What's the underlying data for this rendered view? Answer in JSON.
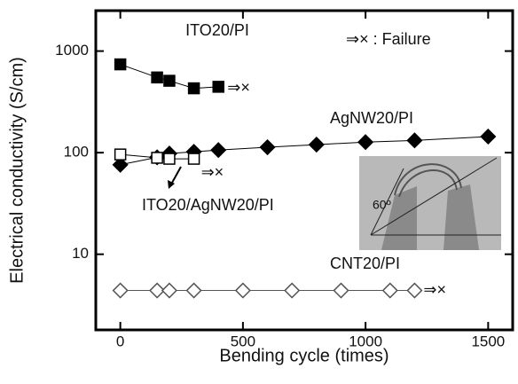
{
  "chart_data": {
    "type": "line",
    "x_label": "Bending cycle (times)",
    "y_label": "Electrical conductivity (S/cm)",
    "xlim": [
      -100,
      1600
    ],
    "xticks": [
      0,
      500,
      1000,
      1500
    ],
    "ylim": [
      1.8,
      2500
    ],
    "yticks": [
      10,
      100,
      1000
    ],
    "y_scale": "log",
    "failure_mark": "⇒×",
    "failure_label": "⇒× : Failure",
    "inset_label": "60º",
    "series": [
      {
        "name": "ITO20/PI",
        "color": "#000000",
        "marker": "square",
        "filled": true,
        "failed": true,
        "x": [
          0,
          150,
          200,
          300,
          400
        ],
        "values": [
          740,
          550,
          510,
          430,
          445
        ]
      },
      {
        "name": "AgNW20/PI",
        "color": "#000000",
        "marker": "diamond",
        "filled": true,
        "failed": false,
        "x": [
          0,
          150,
          200,
          300,
          400,
          600,
          800,
          1000,
          1200,
          1500
        ],
        "values": [
          76,
          90,
          98,
          102,
          106,
          113,
          120,
          127,
          132,
          144
        ]
      },
      {
        "name": "ITO20/AgNW20/PI",
        "color": "#000000",
        "marker": "square",
        "filled": false,
        "failed": true,
        "x": [
          0,
          150,
          200,
          300
        ],
        "values": [
          96,
          89,
          87,
          87
        ]
      },
      {
        "name": "CNT20/PI",
        "color": "#555555",
        "marker": "diamond",
        "filled": false,
        "failed": true,
        "x": [
          0,
          150,
          200,
          300,
          500,
          700,
          900,
          1100,
          1200
        ],
        "values": [
          4.4,
          4.4,
          4.4,
          4.4,
          4.4,
          4.4,
          4.4,
          4.4,
          4.4
        ]
      }
    ]
  }
}
